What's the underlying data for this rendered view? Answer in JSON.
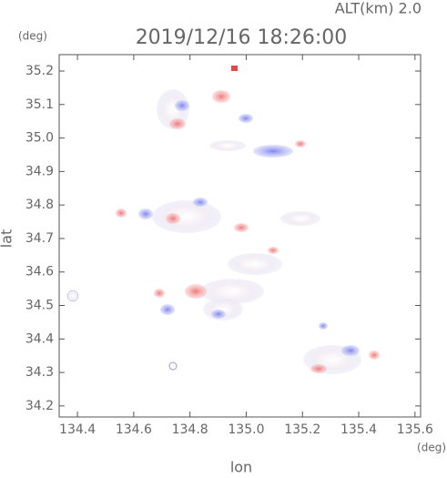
{
  "chart_data": {
    "type": "radar-map",
    "title": "2019/12/16 18:26:00",
    "altitude_label": "ALT(km)  2.0",
    "y_unit": "(deg)",
    "x_unit": "(deg)",
    "xlabel": "lon",
    "ylabel": "lat",
    "xlim": [
      134.335,
      135.62
    ],
    "ylim": [
      34.167,
      35.249
    ],
    "xticks": [
      134.4,
      134.6,
      134.8,
      {
        "value": 135,
        "label": "135.0"
      },
      135.2,
      135.4,
      135.6
    ],
    "yticks": [
      34.2,
      34.3,
      34.4,
      34.5,
      34.6,
      34.7,
      34.8,
      34.9,
      {
        "value": 35,
        "label": "35.0"
      },
      35.1,
      35.2
    ]
  }
}
